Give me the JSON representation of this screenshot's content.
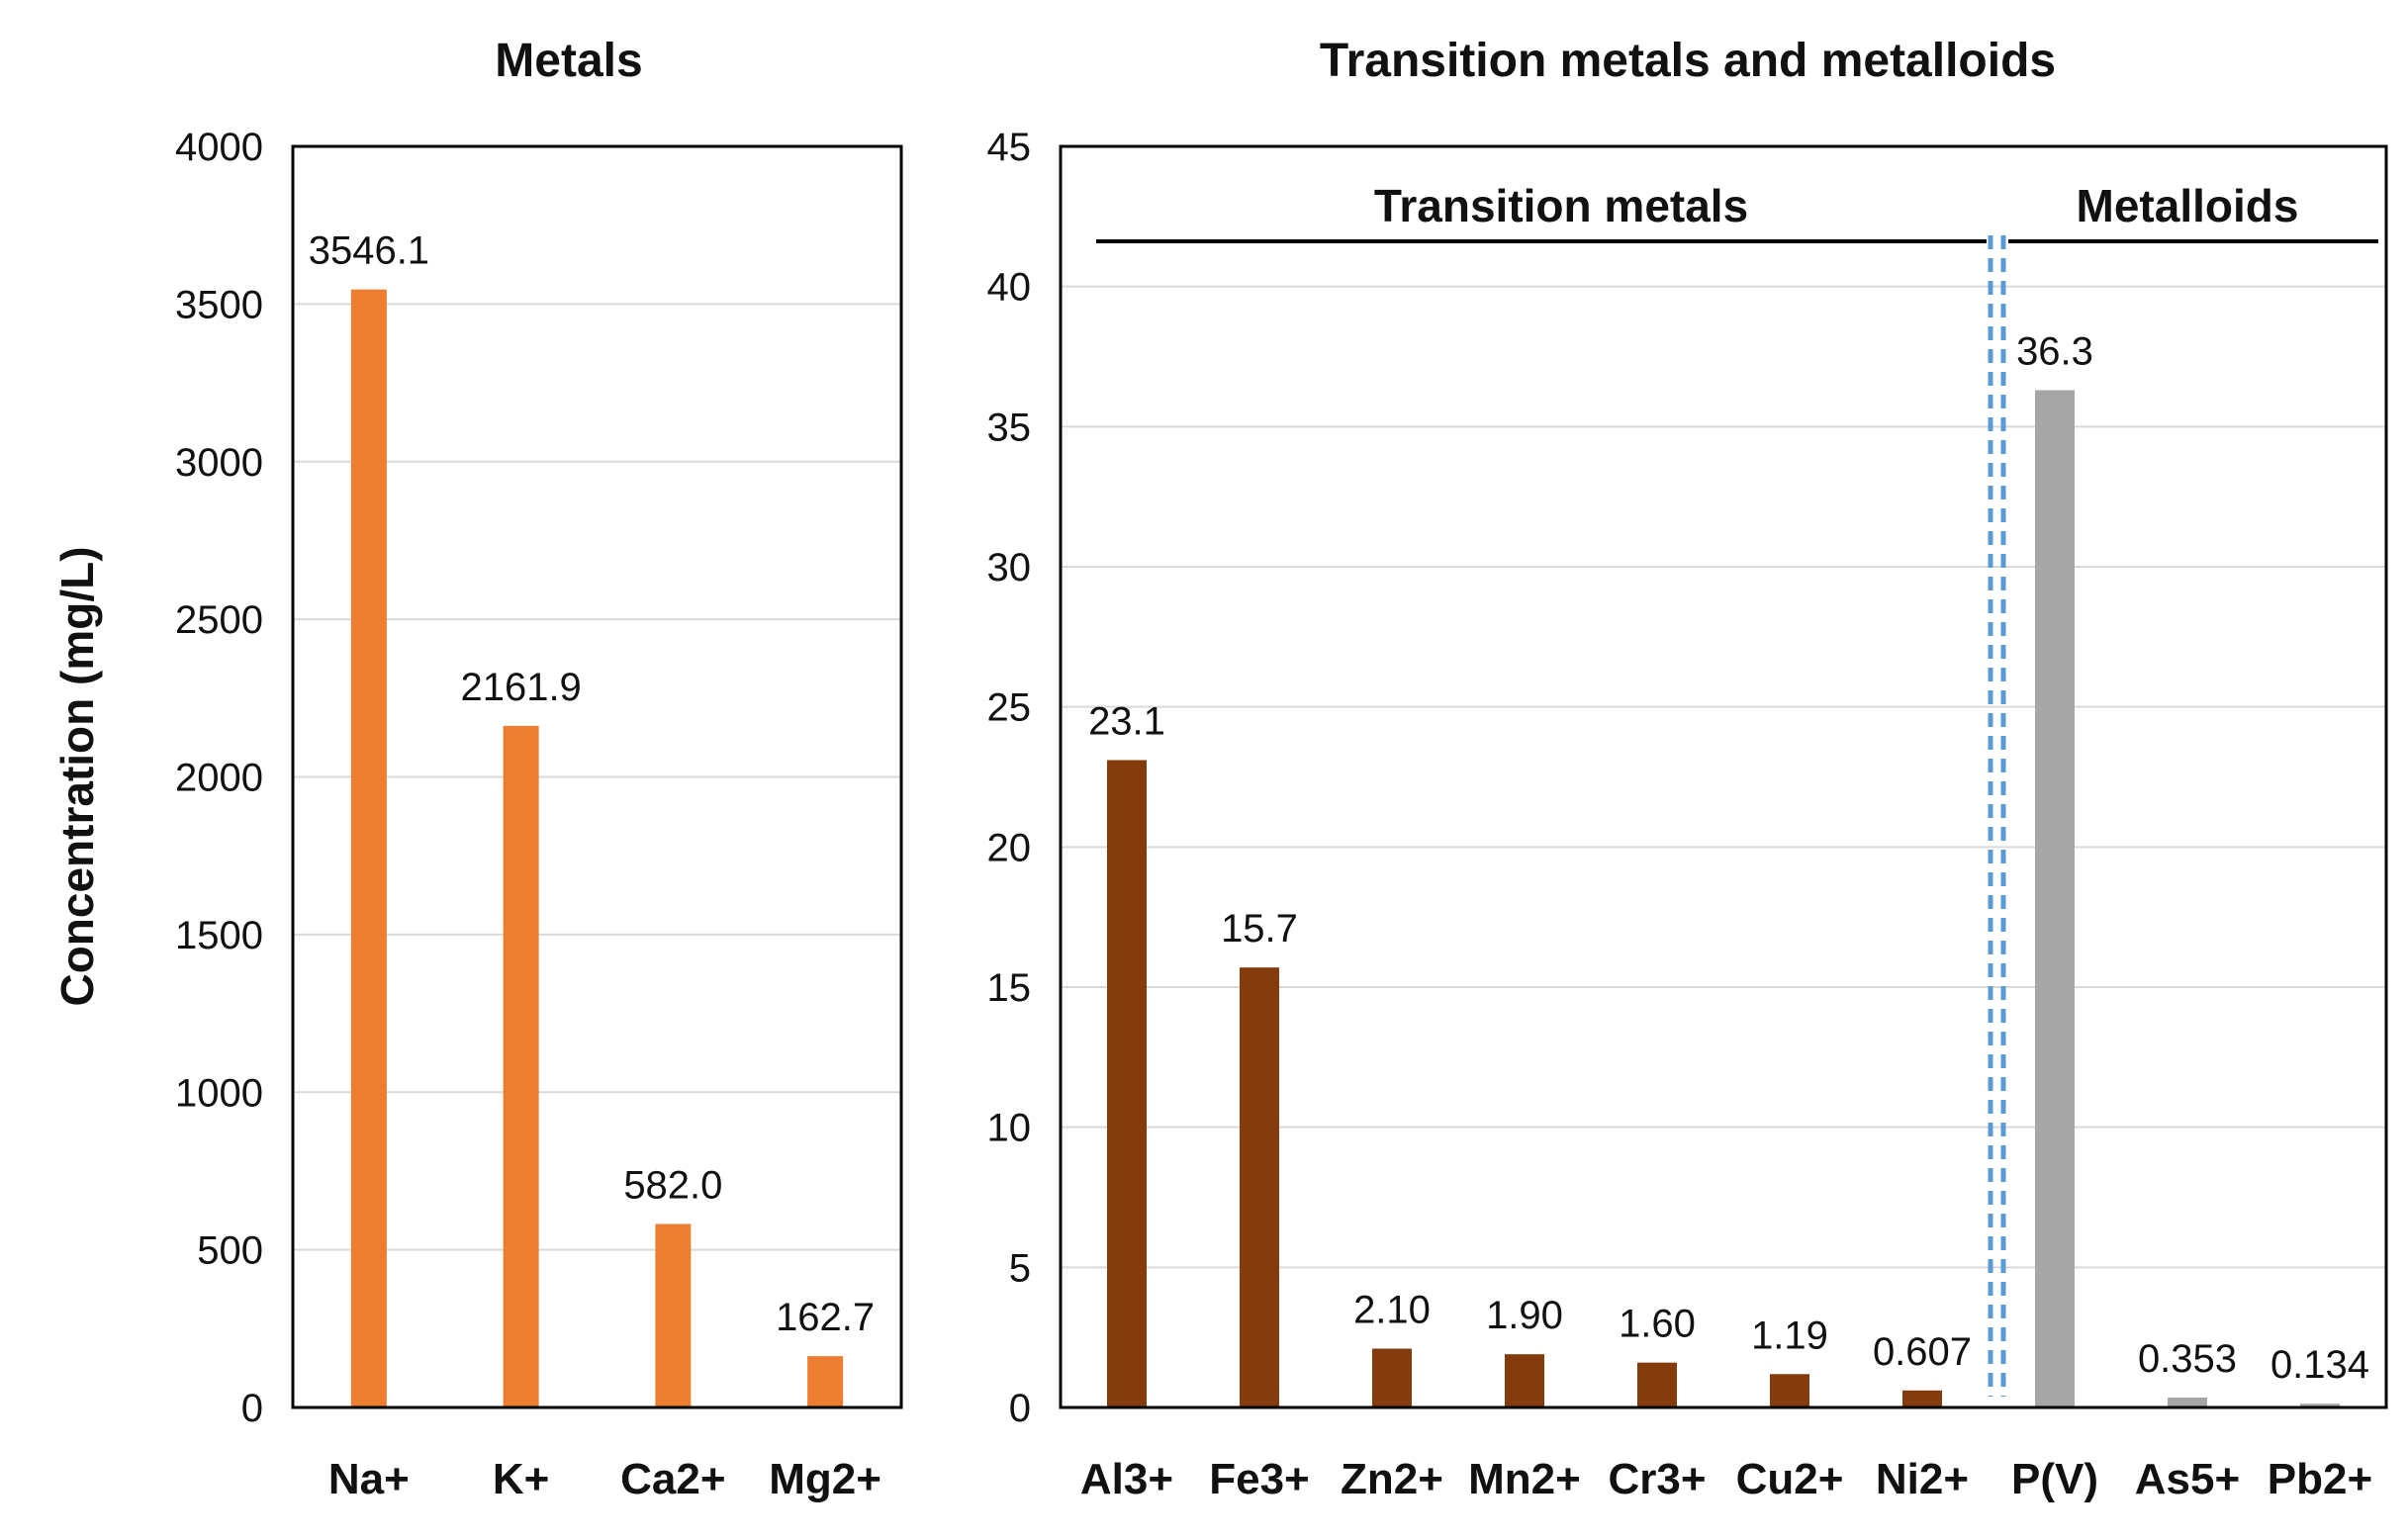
{
  "chart_data": [
    {
      "type": "bar",
      "title": "Metals",
      "ylabel": "Concentration (mg/L)",
      "xlabel": "",
      "ylim": [
        0,
        4000
      ],
      "yticks": [
        0,
        500,
        1000,
        1500,
        2000,
        2500,
        3000,
        3500,
        4000
      ],
      "grid": true,
      "categories": [
        "Na+",
        "K+",
        "Ca2+",
        "Mg2+"
      ],
      "values": [
        3546.1,
        2161.9,
        582.0,
        162.7
      ],
      "data_labels": [
        "3546.1",
        "2161.9",
        "582.0",
        "162.7"
      ],
      "colors": [
        "#ED7D31",
        "#ED7D31",
        "#ED7D31",
        "#ED7D31"
      ]
    },
    {
      "type": "bar",
      "title": "Transition metals and metalloids",
      "ylabel": "",
      "xlabel": "",
      "ylim": [
        0,
        45
      ],
      "yticks": [
        0,
        5,
        10,
        15,
        20,
        25,
        30,
        35,
        40,
        45
      ],
      "grid": true,
      "categories": [
        "Al3+",
        "Fe3+",
        "Zn2+",
        "Mn2+",
        "Cr3+",
        "Cu2+",
        "Ni2+",
        "P(V)",
        "As5+",
        "Pb2+"
      ],
      "values": [
        23.1,
        15.7,
        2.1,
        1.9,
        1.6,
        1.19,
        0.607,
        36.3,
        0.353,
        0.134
      ],
      "data_labels": [
        "23.1",
        "15.7",
        "2.10",
        "1.90",
        "1.60",
        "1.19",
        "0.607",
        "36.3",
        "0.353",
        "0.134"
      ],
      "colors": [
        "#843C0C",
        "#843C0C",
        "#843C0C",
        "#843C0C",
        "#843C0C",
        "#843C0C",
        "#843C0C",
        "#A6A6A6",
        "#A6A6A6",
        "#A6A6A6"
      ],
      "groups": [
        {
          "label": "Transition metals",
          "categories": [
            "Al3+",
            "Fe3+",
            "Zn2+",
            "Mn2+",
            "Cr3+",
            "Cu2+",
            "Ni2+"
          ]
        },
        {
          "label": "Metalloids",
          "categories": [
            "P(V)",
            "As5+",
            "Pb2+"
          ]
        }
      ],
      "separator_color": "#5B9BD5"
    }
  ]
}
